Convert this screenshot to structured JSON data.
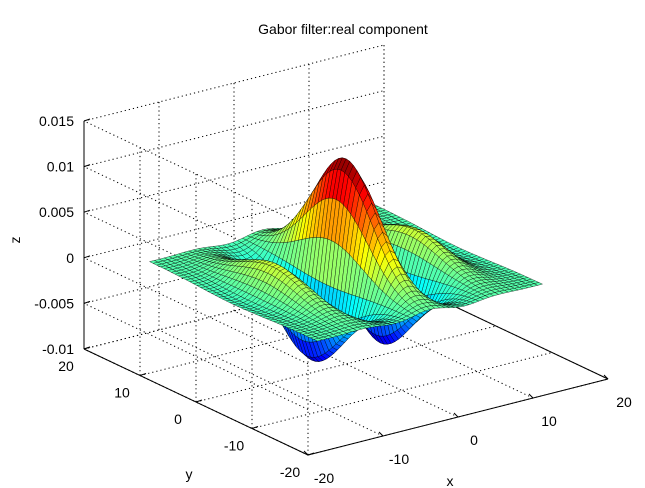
{
  "chart_data": {
    "type": "surface",
    "title": "Gabor filter:real component",
    "xlabel": "x",
    "ylabel": "y",
    "zlabel": "z",
    "xlim": [
      -20,
      20
    ],
    "ylim": [
      -20,
      20
    ],
    "zlim": [
      -0.01,
      0.015
    ],
    "grid": true,
    "colormap": "jet",
    "x_ticks": [
      "-20",
      "-10",
      "0",
      "10",
      "20"
    ],
    "y_ticks": [
      "-20",
      "-10",
      "0",
      "10",
      "20"
    ],
    "z_ticks": [
      "-0.01",
      "-0.005",
      "0",
      "0.005",
      "0.01",
      "0.015"
    ],
    "surface": {
      "function": "gabor_real",
      "x_range": [
        -15,
        15
      ],
      "y_range": [
        -15,
        15
      ],
      "peak_z": 0.0125,
      "trough_z": -0.0105
    }
  }
}
